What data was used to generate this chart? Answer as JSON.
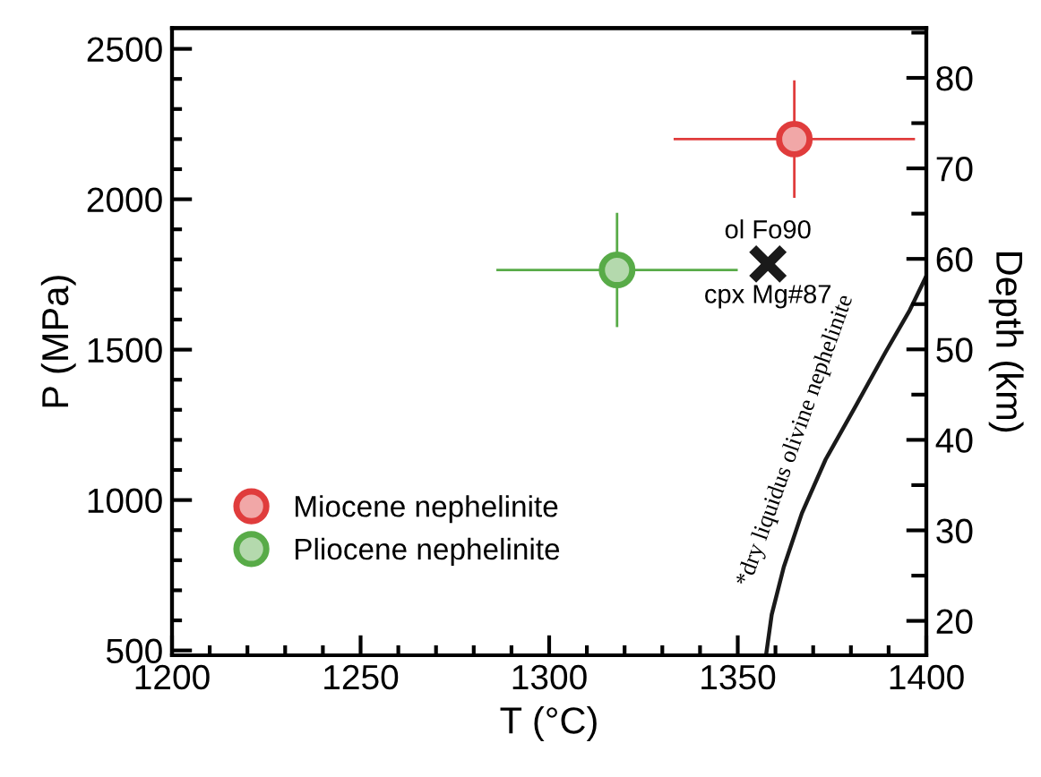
{
  "chart_data": {
    "type": "scatter",
    "xlabel": "T (°C)",
    "ylabel": "P (MPa)",
    "y2label": "Depth (km)",
    "xlim": [
      1200,
      1400
    ],
    "xticks": [
      1200,
      1250,
      1300,
      1350,
      1400
    ],
    "ylim": [
      484,
      2569
    ],
    "yticks": [
      500,
      1000,
      1500,
      2000,
      2500
    ],
    "y2lim": [
      16.2,
      85.5
    ],
    "y2ticks": [
      20,
      30,
      40,
      50,
      60,
      70,
      80
    ],
    "legend": "bottom left",
    "grid": false,
    "series": [
      {
        "name": "Miocene nephelinite",
        "color": "#e03c3c",
        "marker": "circle",
        "x": [
          1365
        ],
        "values": [
          2200
        ],
        "xerrors": [
          32
        ],
        "errors": [
          195
        ]
      },
      {
        "name": "Pliocene nephelinite",
        "color": "#58ab48",
        "marker": "circle",
        "x": [
          1318
        ],
        "values": [
          1765
        ],
        "xerrors": [
          32
        ],
        "errors": [
          190
        ]
      },
      {
        "color": "#1a1a1a",
        "marker": "cross",
        "x": [
          1358
        ],
        "values": [
          1785
        ]
      },
      {
        "name": "*dry liquidus olivine nephelinite",
        "type": "line",
        "color": "#1a1a1a",
        "marker": "none",
        "x": [
          1357.5,
          1359.0,
          1362.2,
          1367.0,
          1373.3,
          1381.3,
          1389.2,
          1395.6,
          1400
        ],
        "values": [
          484,
          619,
          777,
          956,
          1135,
          1313,
          1492,
          1631,
          1745
        ]
      }
    ],
    "annotations": [
      {
        "text": "ol Fo90",
        "x": 1358,
        "y": 1785
      },
      {
        "text": "cpx Mg#87",
        "x": 1358,
        "y": 1785
      }
    ]
  }
}
